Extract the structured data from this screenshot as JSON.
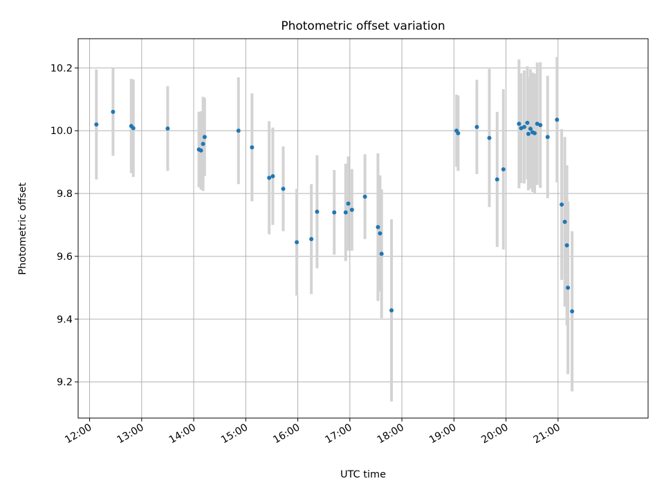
{
  "chart_data": {
    "type": "scatter",
    "title": "Photometric offset variation",
    "xlabel": "UTC time",
    "ylabel": "Photometric offset",
    "x_unit": "hours (UTC)",
    "xlim": [
      11.78,
      22.73
    ],
    "ylim": [
      9.085,
      10.293
    ],
    "grid": true,
    "x_ticks": [
      12,
      13,
      14,
      15,
      16,
      17,
      18,
      19,
      20,
      21
    ],
    "x_tick_labels": [
      "12:00",
      "13:00",
      "14:00",
      "15:00",
      "16:00",
      "17:00",
      "18:00",
      "19:00",
      "20:00",
      "21:00"
    ],
    "y_ticks": [
      9.2,
      9.4,
      9.6,
      9.8,
      10.0,
      10.2
    ],
    "y_tick_labels": [
      "9.2",
      "9.4",
      "9.6",
      "9.8",
      "10.0",
      "10.2"
    ],
    "colors": {
      "point": "#1f77b4",
      "errorbar": "#d3d3d3",
      "grid": "#b0b0b0"
    },
    "series": [
      {
        "x": [
          12.13,
          12.45,
          12.8,
          12.84,
          13.5,
          14.1,
          14.14,
          14.18,
          14.21,
          14.86,
          15.12,
          15.45,
          15.52,
          15.72,
          15.98,
          16.26,
          16.37,
          16.7,
          16.92,
          16.97,
          17.04,
          17.29,
          17.54,
          17.58,
          17.61,
          17.8,
          19.05,
          19.08,
          19.44,
          19.68,
          19.83,
          19.95,
          20.25,
          20.29,
          20.35,
          20.41,
          20.43,
          20.47,
          20.51,
          20.55,
          20.6,
          20.66,
          20.8,
          20.98,
          21.07,
          21.13,
          21.17,
          21.19,
          21.27
        ],
        "y": [
          10.02,
          10.06,
          10.015,
          10.008,
          10.007,
          9.94,
          9.937,
          9.958,
          9.98,
          10.0,
          9.947,
          9.85,
          9.855,
          9.815,
          9.645,
          9.655,
          9.742,
          9.74,
          9.74,
          9.768,
          9.748,
          9.79,
          9.693,
          9.673,
          9.608,
          9.428,
          10.0,
          9.992,
          10.012,
          9.977,
          9.845,
          9.877,
          10.022,
          10.008,
          10.012,
          10.025,
          9.99,
          10.006,
          9.995,
          9.992,
          10.022,
          10.018,
          9.98,
          10.035,
          9.765,
          9.71,
          9.635,
          9.5,
          9.425
        ],
        "y_err": [
          0.175,
          0.14,
          0.15,
          0.155,
          0.135,
          0.12,
          0.125,
          0.15,
          0.125,
          0.17,
          0.172,
          0.18,
          0.155,
          0.135,
          0.17,
          0.175,
          0.18,
          0.135,
          0.155,
          0.15,
          0.13,
          0.135,
          0.235,
          0.185,
          0.205,
          0.29,
          0.115,
          0.12,
          0.15,
          0.22,
          0.215,
          0.255,
          0.205,
          0.175,
          0.18,
          0.18,
          0.18,
          0.19,
          0.19,
          0.19,
          0.195,
          0.2,
          0.195,
          0.2,
          0.24,
          0.27,
          0.255,
          0.275,
          0.255
        ]
      }
    ]
  }
}
